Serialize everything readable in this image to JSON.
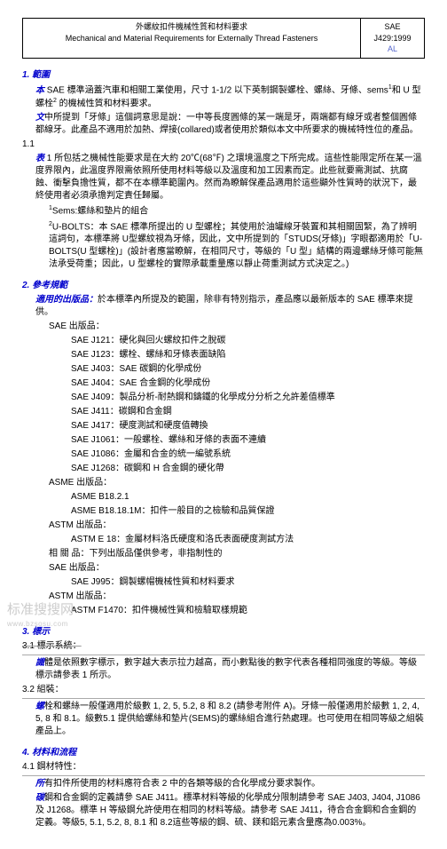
{
  "header": {
    "title_cn": "外螺紋扣件機械性質和材料要求",
    "title_en": "Mechanical and Material Requirements for Externally Thread Fasteners",
    "sae": "SAE",
    "code": "J429:1999",
    "al": "AL"
  },
  "s1": {
    "head": "1. 範圍",
    "p1a": "本",
    "p1b": " SAE 標準涵蓋汽車和相關工業使用，尺寸 1-1/2 以下英制鋼製螺栓、螺絲、牙條、sems",
    "p1c": "和 U 型螺栓",
    "p1d": " 的機械性質和材料要求。",
    "p2a": "文",
    "p2b": "中所提到「牙條」這個詞意思是說：一中等長度圓條的某一端是牙，兩端都有線牙或者整個圓條都線牙。此產品不適用於加熱、焊接(collared)或者使用於類似本文中所要求的機械特性位的產品。",
    "s1_1": "1.1",
    "p3a": "表",
    "p3b": " 1 所包括之機械性能要求是在大約 20℃(68℉) 之環境溫度之下所完成。這些性能限定所在某一溫度界限內，此溫度界限需依照所使用材料等級以及溫度和加工因素而定。此些就要需測試、抗腐蝕、衝擊負擔性質，都不在本標準範圍內。然而為瞭解保產品適用於這些顯外性質時的狀況下，最終使用者必須承擔判定責任歸屬。",
    "n1": "Sems:螺絲和墊片的組合",
    "n2a": "U-BOLTS：本 SAE 標準所提出的 U 型螺栓；其使用於油罐線牙裝置和其相關固緊，為了辨明這詞句，本標準將 U型螺紋視為牙條，因此，文中所提到的「STUDS(牙條)」字眼都適用於「U-BOLTS(U 型螺栓)」(設計者應當瞭解，在相同尺寸，等級的「U 型」結構的兩邊螺絲牙條可能無法承受荷重；因此，U 型螺栓的實際承載重量應以靜止荷重測試方式決定之。)"
  },
  "s2": {
    "head": "2. 參考規範",
    "p1": "適用的出版品：",
    "p1b": "於本標準內所提及的範圍，除非有特別指示，產品應以最新版本的 SAE 標準來提供。",
    "sae_head": "SAE 出版品：",
    "items": [
      "SAE J121：硬化與回火螺紋扣件之脫碳",
      "SAE J123：螺栓、螺絲和牙條表面缺陷",
      "SAE J403：SAE 碳鋼的化學成份",
      "SAE J404：SAE 合金鋼的化學成份",
      "SAE J409：製品分析-耐熱鋼和鑄鐵的化學成分分析之允許差值標準",
      "SAE J411：碳鋼和合金鋼",
      "SAE J417：硬度測試和硬度值轉換",
      "SAE J1061：一般螺栓、螺絲和牙條的表面不連續",
      "SAE J1086：金屬和合金的統一編號系統",
      "SAE J1268：碳鋼和 H 合金鋼的硬化帶"
    ],
    "asme_head": "ASME 出版品：",
    "asme1": "ASME B18.2.1",
    "asme2": "ASME B18.18.1M：扣件一般目的之檢驗和品質保證",
    "astm_head": "ASTM 出版品：",
    "astm1": "ASTM E 18：金屬材料洛氏硬度和洛氏表面硬度測試方法",
    "rel_head": "相 關 品：下列出版品僅供參考，非指制性的",
    "sae2_head": "SAE 出版品：",
    "sae2_1": "SAE J995：鋼製螺帽機械性質和材料要求",
    "astm2_head": "ASTM 出版品：",
    "astm2_1": "ASTM F1470：扣件機械性質和檢驗取樣規範"
  },
  "s3": {
    "head": "3. 標示",
    "s3_1": "3.1 標示系統：",
    "p1a": "識",
    "p1b": "體是依照數字標示，數字越大表示拉力越高，而小數點後的數字代表各種相同強度的等級。等級標示請參表 1 所示。",
    "s3_2": "3.2 組裝：",
    "p2a": "螺",
    "p2b": "栓和螺絲一般僅適用於級數 1, 2, 5, 5.2, 8 和 8.2 (請參考附件 A)。牙條一般僅適用於級數 1, 2, 4, 5, 8 和 8.1。級數5.1 提供給螺絲和墊片(SEMS)的螺絲組合進行熱處理。也可使用在相同等級之組裝產品上。"
  },
  "s4": {
    "head": "4. 材料和流程",
    "s4_1": "4.1 鋼材特性：",
    "p1a": "所",
    "p1b": "有扣件所使用的材料應符合表 2 中的各類等級的合化學成分要求製作。",
    "p2a": "碳",
    "p2b": "鋼和合金鋼的定義請參 SAE J411。標準材料等級的化學成分限制請參考 SAE J403, J404, J1086 及 J1268。標準 H 等級鋼允許使用在相同的材料等級。請參考 SAE J411，待合合金鋼和合金鋼的定義。等級5, 5.1, 5.2, 8, 8.1 和 8.2這些等級的鋼、硫、鎂和鋁元素含量應為0.003%。"
  },
  "watermark": {
    "line1": "标准搜搜网",
    "line2": "www.bzsosu.com"
  }
}
